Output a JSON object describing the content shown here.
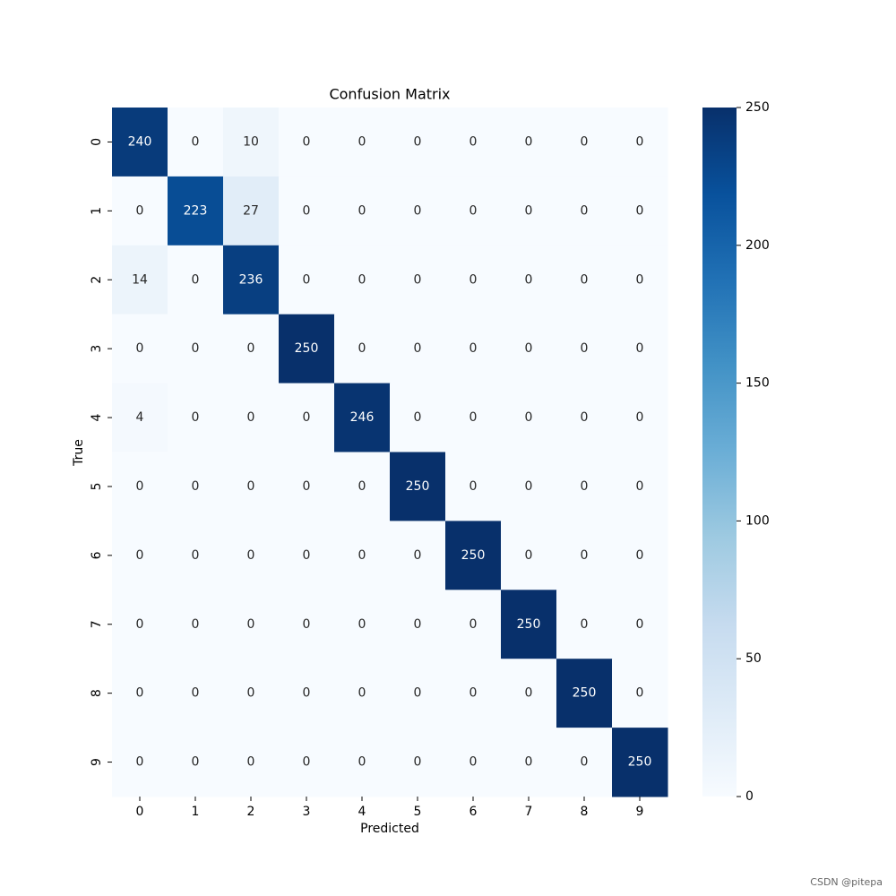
{
  "chart_data": {
    "type": "heatmap",
    "title": "Confusion Matrix",
    "x_label": "Predicted",
    "y_label": "True",
    "x_categories": [
      "0",
      "1",
      "2",
      "3",
      "4",
      "5",
      "6",
      "7",
      "8",
      "9"
    ],
    "y_categories": [
      "0",
      "1",
      "2",
      "3",
      "4",
      "5",
      "6",
      "7",
      "8",
      "9"
    ],
    "values": [
      [
        240,
        0,
        10,
        0,
        0,
        0,
        0,
        0,
        0,
        0
      ],
      [
        0,
        223,
        27,
        0,
        0,
        0,
        0,
        0,
        0,
        0
      ],
      [
        14,
        0,
        236,
        0,
        0,
        0,
        0,
        0,
        0,
        0
      ],
      [
        0,
        0,
        0,
        250,
        0,
        0,
        0,
        0,
        0,
        0
      ],
      [
        4,
        0,
        0,
        0,
        246,
        0,
        0,
        0,
        0,
        0
      ],
      [
        0,
        0,
        0,
        0,
        0,
        250,
        0,
        0,
        0,
        0
      ],
      [
        0,
        0,
        0,
        0,
        0,
        0,
        250,
        0,
        0,
        0
      ],
      [
        0,
        0,
        0,
        0,
        0,
        0,
        0,
        250,
        0,
        0
      ],
      [
        0,
        0,
        0,
        0,
        0,
        0,
        0,
        0,
        250,
        0
      ],
      [
        0,
        0,
        0,
        0,
        0,
        0,
        0,
        0,
        0,
        250
      ]
    ],
    "colormap": [
      "#f7fbff",
      "#deebf7",
      "#c6dbef",
      "#9ecae1",
      "#6baed6",
      "#4292c6",
      "#2171b5",
      "#08519c",
      "#08306b"
    ],
    "zlim": [
      0,
      250
    ],
    "zticks": [
      0,
      50,
      100,
      150,
      200,
      250
    ]
  },
  "watermark": "CSDN @pitepa"
}
